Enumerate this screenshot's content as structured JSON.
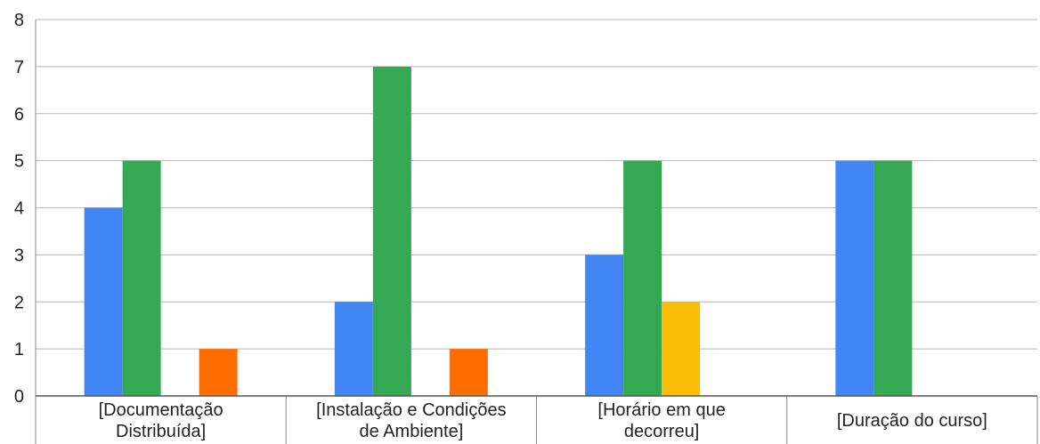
{
  "chart_data": {
    "type": "bar",
    "title": "",
    "xlabel": "",
    "ylabel": "",
    "ylim": [
      0,
      8
    ],
    "yticks": [
      0,
      1,
      2,
      3,
      4,
      5,
      6,
      7,
      8
    ],
    "grid": true,
    "categories": [
      [
        "[Documentação",
        "Distribuída]"
      ],
      [
        "[Instalação e Condições",
        "de Ambiente]"
      ],
      [
        "[Horário em que",
        "decorreu]"
      ],
      [
        "[Duração do curso]"
      ]
    ],
    "series": [
      {
        "color": "#4285F4",
        "values": [
          4,
          2,
          3,
          5
        ]
      },
      {
        "color": "#34A853",
        "values": [
          5,
          7,
          5,
          5
        ]
      },
      {
        "color": "#FBBC04",
        "values": [
          0,
          0,
          2,
          0
        ]
      },
      {
        "color": "#FF6D01",
        "values": [
          1,
          1,
          0,
          0
        ]
      }
    ]
  }
}
